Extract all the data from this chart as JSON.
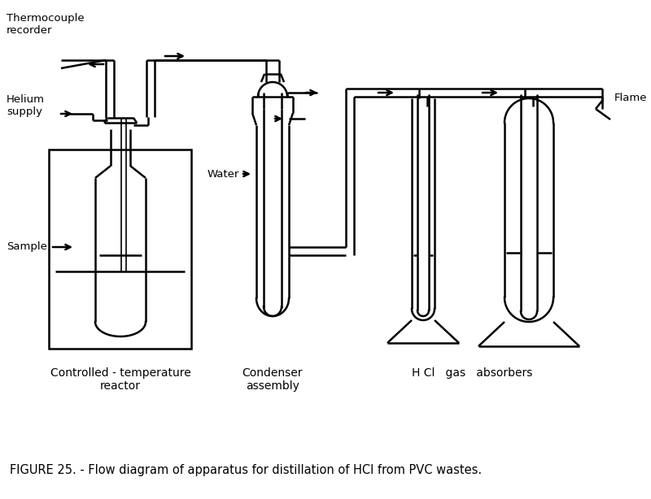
{
  "title": "FIGURE 25. - Flow diagram of apparatus for distillation of HCl from PVC wastes.",
  "background_color": "#ffffff",
  "line_color": "#000000",
  "labels": {
    "thermocouple": "Thermocouple\nrecorder",
    "helium": "Helium\nsupply",
    "sample": "Sample",
    "water": "Water",
    "controlled": "Controlled - temperature\nreactor",
    "condenser": "Condenser\nassembly",
    "absorbers": "H Cl   gas   absorbers",
    "flame": "Flame"
  },
  "figsize": [
    8.0,
    6.14
  ],
  "dpi": 100
}
